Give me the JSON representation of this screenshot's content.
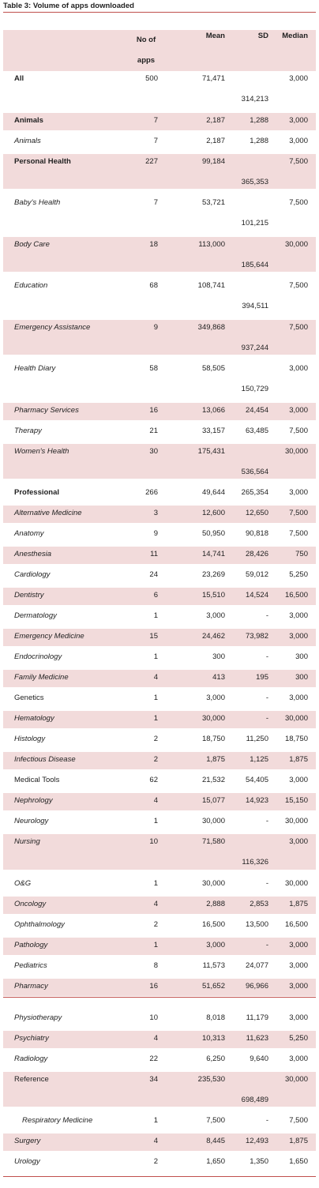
{
  "title": "Table 3: Volume of apps downloaded",
  "table": {
    "columns": [
      "No of apps",
      "Mean",
      "SD",
      "Median"
    ],
    "rows": [
      [
        "All",
        "500",
        "71,471",
        "314,213",
        "3,000"
      ],
      [
        "Animals",
        "7",
        "2,187",
        "1,288",
        "3,000"
      ],
      [
        "Animals",
        "7",
        "2,187",
        "1,288",
        "3,000"
      ],
      [
        "Personal Health",
        "227",
        "99,184",
        "365,353",
        "7,500"
      ],
      [
        "Baby's Health",
        "7",
        "53,721",
        "101,215",
        "7,500"
      ],
      [
        "Body Care",
        "18",
        "113,000",
        "185,644",
        "30,000"
      ],
      [
        "Education",
        "68",
        "108,741",
        "394,511",
        "7,500"
      ],
      [
        "Emergency Assistance",
        "9",
        "349,868",
        "937,244",
        "7,500"
      ],
      [
        "Health Diary",
        "58",
        "58,505",
        "150,729",
        "3,000"
      ],
      [
        "Pharmacy Services",
        "16",
        "13,066",
        "24,454",
        "3,000"
      ],
      [
        "Therapy",
        "21",
        "33,157",
        "63,485",
        "7,500"
      ],
      [
        "Women's Health",
        "30",
        "175,431",
        "536,564",
        "30,000"
      ],
      [
        "Professional",
        "266",
        "49,644",
        "265,354",
        "3,000"
      ],
      [
        "Alternative Medicine",
        "3",
        "12,600",
        "12,650",
        "7,500"
      ],
      [
        "Anatomy",
        "9",
        "50,950",
        "90,818",
        "7,500"
      ],
      [
        "Anesthesia",
        "11",
        "14,741",
        "28,426",
        "750"
      ],
      [
        "Cardiology",
        "24",
        "23,269",
        "59,012",
        "5,250"
      ],
      [
        "Dentistry",
        "6",
        "15,510",
        "14,524",
        "16,500"
      ],
      [
        "Dermatology",
        "1",
        "3,000",
        "-",
        "3,000"
      ],
      [
        "Emergency Medicine",
        "15",
        "24,462",
        "73,982",
        "3,000"
      ],
      [
        "Endocrinology",
        "1",
        "300",
        "-",
        "300"
      ],
      [
        "Family Medicine",
        "4",
        "413",
        "195",
        "300"
      ],
      [
        "Genetics",
        "1",
        "3,000",
        "-",
        "3,000"
      ],
      [
        "Hematology",
        "1",
        "30,000",
        "-",
        "30,000"
      ],
      [
        "Histology",
        "2",
        "18,750",
        "11,250",
        "18,750"
      ],
      [
        "Infectious Disease",
        "2",
        "1,875",
        "1,125",
        "1,875"
      ],
      [
        "Medical Tools",
        "62",
        "21,532",
        "54,405",
        "3,000"
      ],
      [
        "Nephrology",
        "4",
        "15,077",
        "14,923",
        "15,150"
      ],
      [
        "Neurology",
        "1",
        "30,000",
        "-",
        "30,000"
      ],
      [
        "Nursing",
        "10",
        "71,580",
        "116,326",
        "3,000"
      ],
      [
        "O&G",
        "1",
        "30,000",
        "-",
        "30,000"
      ],
      [
        "Oncology",
        "4",
        "2,888",
        "2,853",
        "1,875"
      ],
      [
        "Ophthalmology",
        "2",
        "16,500",
        "13,500",
        "16,500"
      ],
      [
        "Pathology",
        "1",
        "3,000",
        "-",
        "3,000"
      ],
      [
        "Pediatrics",
        "8",
        "11,573",
        "24,077",
        "3,000"
      ],
      [
        "Pharmacy",
        "16",
        "51,652",
        "96,966",
        "3,000"
      ],
      [
        "Physiotherapy",
        "10",
        "8,018",
        "11,179",
        "3,000"
      ],
      [
        "Psychiatry",
        "4",
        "10,313",
        "11,623",
        "5,250"
      ],
      [
        "Radiology",
        "22",
        "6,250",
        "9,640",
        "3,000"
      ],
      [
        "Reference",
        "34",
        "235,530",
        "698,489",
        "30,000"
      ],
      [
        "Respiratory Medicine",
        "1",
        "7,500",
        "-",
        "7,500"
      ],
      [
        "Surgery",
        "4",
        "8,445",
        "12,493",
        "1,875"
      ],
      [
        "Urology",
        "2",
        "1,650",
        "1,350",
        "1,650"
      ]
    ]
  }
}
